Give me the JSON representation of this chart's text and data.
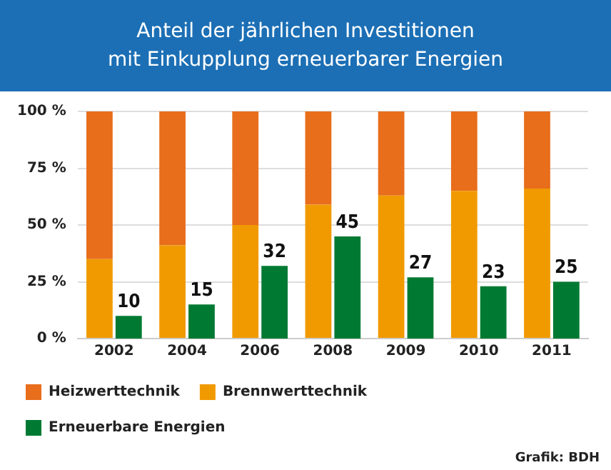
{
  "chart_data": {
    "type": "bar",
    "title": "Anteil der jährlichen Investitionen\nmit Einkupplung erneuerbarer Energien",
    "categories": [
      "2002",
      "2004",
      "2006",
      "2008",
      "2009",
      "2010",
      "2011"
    ],
    "stacked": true,
    "series": [
      {
        "name": "Brennwerttechnik",
        "color": "#f09a00",
        "values": [
          35,
          41,
          50,
          59,
          63,
          65,
          66
        ]
      },
      {
        "name": "Heizwerttechnik",
        "color": "#e86e1c",
        "values": [
          65,
          59,
          50,
          41,
          37,
          35,
          34
        ]
      },
      {
        "name": "Erneuerbare Energien",
        "color": "#007a33",
        "axis": "y2",
        "values": [
          10,
          15,
          32,
          45,
          27,
          23,
          25
        ],
        "value_labels": [
          "10",
          "15",
          "32",
          "45",
          "27",
          "23",
          "25"
        ]
      }
    ],
    "ylim": [
      0,
      100
    ],
    "yticks": [
      {
        "value": 0,
        "label": "0 %"
      },
      {
        "value": 25,
        "label": "25 %"
      },
      {
        "value": 50,
        "label": "50 %"
      },
      {
        "value": 75,
        "label": "75 %"
      },
      {
        "value": 100,
        "label": "100 %"
      }
    ],
    "y2lim": [
      0,
      100
    ],
    "grid": "y",
    "legend": "bottom",
    "annotations": [
      "Grafik: BDH"
    ]
  }
}
